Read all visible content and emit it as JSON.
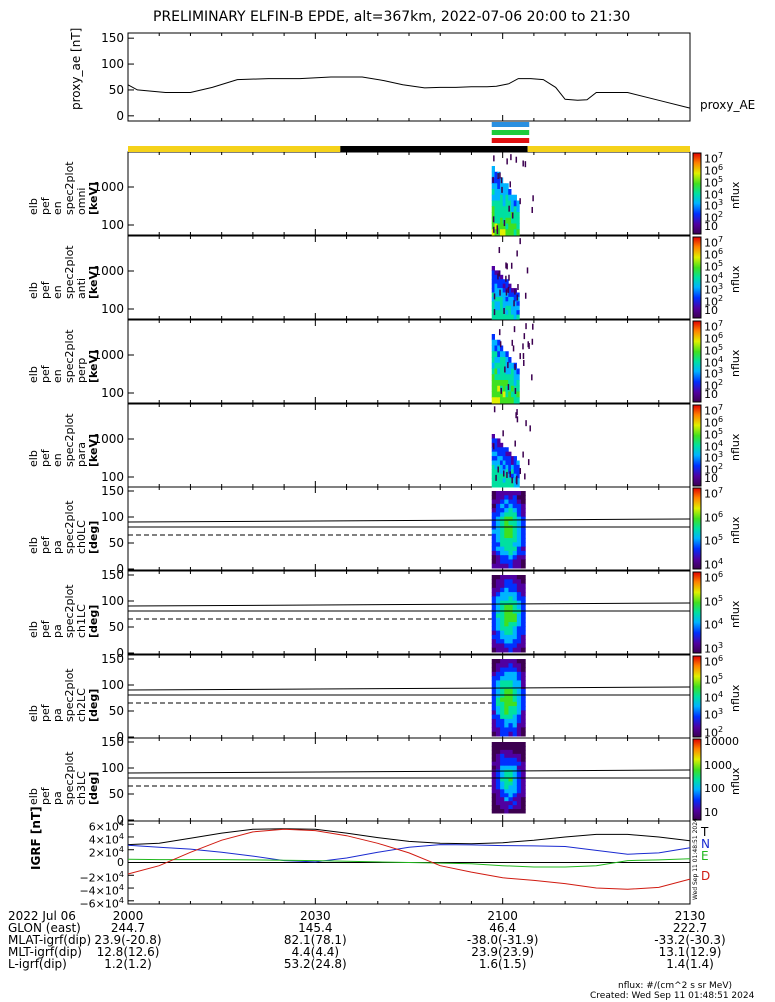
{
  "title": "PRELIMINARY ELFIN-B EPDE, alt=367km, 2022-07-06 20:00 to 21:30",
  "colors": {
    "orbit_bar_day": "#f5d21a",
    "orbit_bar_night": "#000000",
    "bar_blue": "#2a8fe0",
    "bar_green": "#1ecb3a",
    "bar_red": "#e01010",
    "igrf_T": "#000000",
    "igrf_N": "#1a2ad0",
    "igrf_E": "#22b81e",
    "igrf_D": "#d01a10"
  },
  "chart_data": [
    {
      "type": "line",
      "name": "proxy_ae",
      "ylabel": "proxy_ae [nT]",
      "legend": "proxy_AE",
      "ylim": [
        -10,
        160
      ],
      "yticks": [
        "150",
        "100",
        "50",
        "0"
      ],
      "x_minutes": [
        0,
        3,
        12,
        20,
        27,
        35,
        45,
        55,
        65,
        75,
        82,
        88,
        95,
        100,
        105,
        110,
        115,
        118,
        122,
        125,
        129,
        133,
        137,
        140,
        144,
        147,
        150,
        160,
        170,
        180
      ],
      "values": [
        60,
        50,
        45,
        45,
        55,
        70,
        72,
        72,
        75,
        75,
        68,
        60,
        54,
        55,
        55,
        56,
        56,
        57,
        62,
        72,
        72,
        70,
        55,
        32,
        30,
        31,
        45,
        45,
        30,
        15
      ]
    },
    {
      "type": "heatmap",
      "name": "elb pef en spec2plot omni",
      "ylabel": [
        "elb",
        "pef",
        "en",
        "spec2plot",
        "omni",
        "[keV]"
      ],
      "yticks": [
        "1000",
        "100"
      ],
      "colorbar_labels": [
        "10^7",
        "10^6",
        "10^5",
        "10^4",
        "10^3",
        "10^2",
        "10"
      ],
      "colorbar_title": "nflux"
    },
    {
      "type": "heatmap",
      "name": "elb pef en spec2plot anti",
      "ylabel": [
        "elb",
        "pef",
        "en",
        "spec2plot",
        "anti",
        "[keV]"
      ],
      "yticks": [
        "1000",
        "100"
      ],
      "colorbar_labels": [
        "10^7",
        "10^6",
        "10^5",
        "10^4",
        "10^3",
        "10^2",
        "10"
      ],
      "colorbar_title": "nflux"
    },
    {
      "type": "heatmap",
      "name": "elb pef en spec2plot perp",
      "ylabel": [
        "elb",
        "pef",
        "en",
        "spec2plot",
        "perp",
        "[keV]"
      ],
      "yticks": [
        "1000",
        "100"
      ],
      "colorbar_labels": [
        "10^7",
        "10^6",
        "10^5",
        "10^4",
        "10^3",
        "10^2",
        "10"
      ],
      "colorbar_title": "nflux"
    },
    {
      "type": "heatmap",
      "name": "elb pef en spec2plot para",
      "ylabel": [
        "elb",
        "pef",
        "en",
        "spec2plot",
        "para",
        "[keV]"
      ],
      "yticks": [
        "1000",
        "100"
      ],
      "colorbar_labels": [
        "10^7",
        "10^6",
        "10^5",
        "10^4",
        "10^3",
        "10^2",
        "10"
      ],
      "colorbar_title": "nflux"
    },
    {
      "type": "heatmap",
      "name": "elb pef pa spec2plot ch0LC",
      "ylabel": [
        "elb",
        "pef",
        "pa",
        "spec2plot",
        "ch0LC",
        "[deg]"
      ],
      "yticks": [
        "150",
        "100",
        "50",
        "0"
      ],
      "colorbar_labels": [
        "10^7",
        "10^6",
        "10^5",
        "10^4"
      ],
      "colorbar_title": "nflux"
    },
    {
      "type": "heatmap",
      "name": "elb pef pa spec2plot ch1LC",
      "ylabel": [
        "elb",
        "pef",
        "pa",
        "spec2plot",
        "ch1LC",
        "[deg]"
      ],
      "yticks": [
        "150",
        "100",
        "50",
        "0"
      ],
      "colorbar_labels": [
        "10^6",
        "10^5",
        "10^4",
        "10^3"
      ],
      "colorbar_title": "nflux"
    },
    {
      "type": "heatmap",
      "name": "elb pef pa spec2plot ch2LC",
      "ylabel": [
        "elb",
        "pef",
        "pa",
        "spec2plot",
        "ch2LC",
        "[deg]"
      ],
      "yticks": [
        "150",
        "100",
        "50",
        "0"
      ],
      "colorbar_labels": [
        "10^6",
        "10^5",
        "10^4",
        "10^3",
        "10^2"
      ],
      "colorbar_title": "nflux"
    },
    {
      "type": "heatmap",
      "name": "elb pef pa spec2plot ch3LC",
      "ylabel": [
        "elb",
        "pef",
        "pa",
        "spec2plot",
        "ch3LC",
        "[deg]"
      ],
      "yticks": [
        "150",
        "100",
        "50",
        "0"
      ],
      "colorbar_labels": [
        "10000",
        "1000",
        "100",
        "10"
      ],
      "colorbar_title": "nflux"
    },
    {
      "type": "line",
      "name": "IGRF",
      "ylabel": "IGRF [nT]",
      "yticks": [
        "6×10^4",
        "4×10^4",
        "2×10^4",
        "0",
        "−2×10^4",
        "−4×10^4",
        "−6×10^4"
      ],
      "ylim": [
        -65000,
        65000
      ],
      "legend": [
        "T",
        "N",
        "E",
        "D"
      ],
      "x_minutes": [
        0,
        10,
        20,
        30,
        40,
        50,
        60,
        70,
        80,
        90,
        100,
        110,
        120,
        130,
        140,
        150,
        160,
        170,
        180
      ],
      "series": [
        {
          "name": "T",
          "values": [
            28000,
            30000,
            38000,
            46000,
            52000,
            53000,
            52000,
            46000,
            39000,
            33000,
            30000,
            29500,
            31000,
            35000,
            40000,
            44000,
            44000,
            40000,
            34000
          ]
        },
        {
          "name": "N",
          "values": [
            27000,
            24000,
            21000,
            16000,
            10000,
            3000,
            1000,
            7000,
            16000,
            24000,
            28000,
            27500,
            26500,
            26000,
            25000,
            19000,
            13000,
            15000,
            23000
          ]
        },
        {
          "name": "E",
          "values": [
            5000,
            4500,
            4500,
            4500,
            4000,
            3500,
            3000,
            2000,
            1000,
            0,
            -1000,
            -2000,
            -5000,
            -7000,
            -7000,
            -5000,
            3000,
            4000,
            6000
          ]
        },
        {
          "name": "D",
          "values": [
            -18000,
            -5000,
            16000,
            35000,
            48000,
            52000,
            50000,
            42000,
            30000,
            15000,
            -5000,
            -15000,
            -24000,
            -28000,
            -33000,
            -40000,
            -42000,
            -39000,
            -26000
          ]
        }
      ]
    }
  ],
  "spectra_meta": {
    "x_window_minutes": [
      116.5,
      128.5
    ]
  },
  "xaxis": {
    "row_labels": [
      "2022 Jul 06",
      "GLON (east)",
      "MLAT-igrf(dip)",
      "MLT-igrf(dip)",
      "L-igrf(dip)"
    ],
    "columns": [
      {
        "x_min": 0,
        "values": [
          "2000",
          "244.7",
          "23.9(-20.8)",
          "12.8(12.6)",
          "1.2(1.2)"
        ]
      },
      {
        "x_min": 60,
        "values": [
          "2030",
          "145.4",
          "82.1(78.1)",
          "4.4(4.4)",
          "53.2(24.8)"
        ]
      },
      {
        "x_min": 120,
        "values": [
          "2100",
          "46.4",
          "-38.0(-31.9)",
          "23.9(23.9)",
          "1.6(1.5)"
        ]
      },
      {
        "x_min": 180,
        "values": [
          "2130",
          "222.7",
          "-33.2(-30.3)",
          "13.1(12.9)",
          "1.4(1.4)"
        ]
      }
    ]
  },
  "footer": {
    "units": "nflux: #/(cm^2 s sr MeV)",
    "created": "Created: Wed Sep 11 01:48:51 2024",
    "side_stamp": "Wed Sep 11 01:48:51 2024"
  },
  "orbit_bar": {
    "segments": [
      {
        "from": 0,
        "to": 68,
        "kind": "day"
      },
      {
        "from": 68,
        "to": 128,
        "kind": "night"
      },
      {
        "from": 128,
        "to": 180,
        "kind": "day"
      }
    ],
    "markers": [
      {
        "from": 116.5,
        "to": 128.5,
        "color_key": "bar_blue"
      },
      {
        "from": 116.5,
        "to": 128.5,
        "color_key": "bar_green"
      },
      {
        "from": 116.5,
        "to": 128.5,
        "color_key": "bar_red"
      }
    ]
  }
}
